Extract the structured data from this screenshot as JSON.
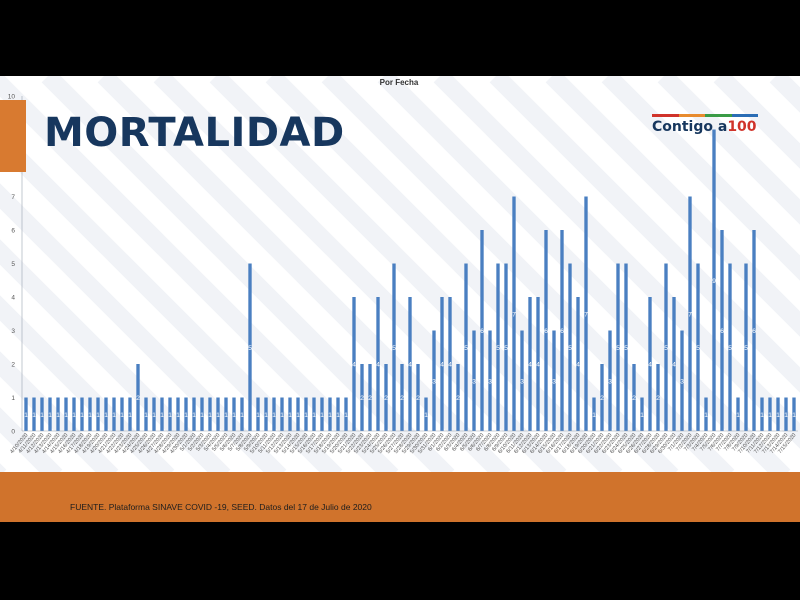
{
  "slide": {
    "title": "MORTALIDAD",
    "logo_text_main": "Contigo a",
    "logo_text_accent": "100",
    "logo_colors": [
      "#d0332a",
      "#e88b2e",
      "#3a9b46",
      "#2a6db5"
    ],
    "source": "FUENTE. Plataforma SINAVE COVID -19, SEED. Datos del 17 de Julio de 2020",
    "accent_color": "#d0732c",
    "title_color": "#17375e"
  },
  "chart_data": {
    "type": "bar",
    "title": "Por Fecha",
    "xlabel": "",
    "ylabel": "",
    "ylim": [
      0,
      10
    ],
    "yticks": [
      0,
      1,
      2,
      3,
      4,
      5,
      6,
      7,
      8,
      9,
      10
    ],
    "grid": false,
    "bar_color": "#4a7fc1",
    "data_labels": true,
    "categories": [
      "4/10/2020",
      "4/11/2020",
      "4/12/2020",
      "4/13/2020",
      "4/14/2020",
      "4/15/2020",
      "4/16/2020",
      "4/17/2020",
      "4/18/2020",
      "4/19/2020",
      "4/20/2020",
      "4/21/2020",
      "4/22/2020",
      "4/23/2020",
      "4/24/2020",
      "4/25/2020",
      "4/26/2020",
      "4/27/2020",
      "4/28/2020",
      "4/29/2020",
      "4/30/2020",
      "5/1/2020",
      "5/2/2020",
      "5/3/2020",
      "5/4/2020",
      "5/5/2020",
      "5/6/2020",
      "5/7/2020",
      "5/8/2020",
      "5/9/2020",
      "5/10/2020",
      "5/11/2020",
      "5/12/2020",
      "5/13/2020",
      "5/14/2020",
      "5/15/2020",
      "5/16/2020",
      "5/17/2020",
      "5/18/2020",
      "5/19/2020",
      "5/20/2020",
      "5/21/2020",
      "5/22/2020",
      "5/23/2020",
      "5/24/2020",
      "5/25/2020",
      "5/26/2020",
      "5/27/2020",
      "5/28/2020",
      "5/29/2020",
      "5/30/2020",
      "5/31/2020",
      "6/1/2020",
      "6/2/2020",
      "6/3/2020",
      "6/4/2020",
      "6/5/2020",
      "6/6/2020",
      "6/7/2020",
      "6/8/2020",
      "6/9/2020",
      "6/10/2020",
      "6/11/2020",
      "6/12/2020",
      "6/13/2020",
      "6/14/2020",
      "6/15/2020",
      "6/16/2020",
      "6/17/2020",
      "6/18/2020",
      "6/19/2020",
      "6/20/2020",
      "6/21/2020",
      "6/22/2020",
      "6/23/2020",
      "6/24/2020",
      "6/25/2020",
      "6/26/2020",
      "6/27/2020",
      "6/28/2020",
      "6/29/2020",
      "6/30/2020",
      "7/1/2020",
      "7/2/2020",
      "7/3/2020",
      "7/4/2020",
      "7/5/2020",
      "7/6/2020",
      "7/7/2020",
      "7/8/2020",
      "7/9/2020",
      "7/10/2020",
      "7/11/2020",
      "7/12/2020",
      "7/13/2020",
      "7/14/2020",
      "7/15/2020"
    ],
    "values": [
      1,
      1,
      1,
      1,
      1,
      1,
      1,
      1,
      1,
      1,
      1,
      1,
      1,
      1,
      2,
      1,
      1,
      1,
      1,
      1,
      1,
      1,
      1,
      1,
      1,
      1,
      1,
      1,
      5,
      1,
      1,
      1,
      1,
      1,
      1,
      1,
      1,
      1,
      1,
      1,
      1,
      4,
      2,
      2,
      4,
      2,
      5,
      2,
      4,
      2,
      1,
      3,
      4,
      4,
      2,
      5,
      3,
      6,
      3,
      5,
      5,
      7,
      3,
      4,
      4,
      6,
      3,
      6,
      5,
      4,
      7,
      1,
      2,
      3,
      5,
      5,
      2,
      1,
      4,
      2,
      5,
      4,
      3,
      7,
      5,
      1,
      9,
      6,
      5,
      1,
      5,
      6,
      1,
      1,
      1,
      1,
      1
    ]
  }
}
